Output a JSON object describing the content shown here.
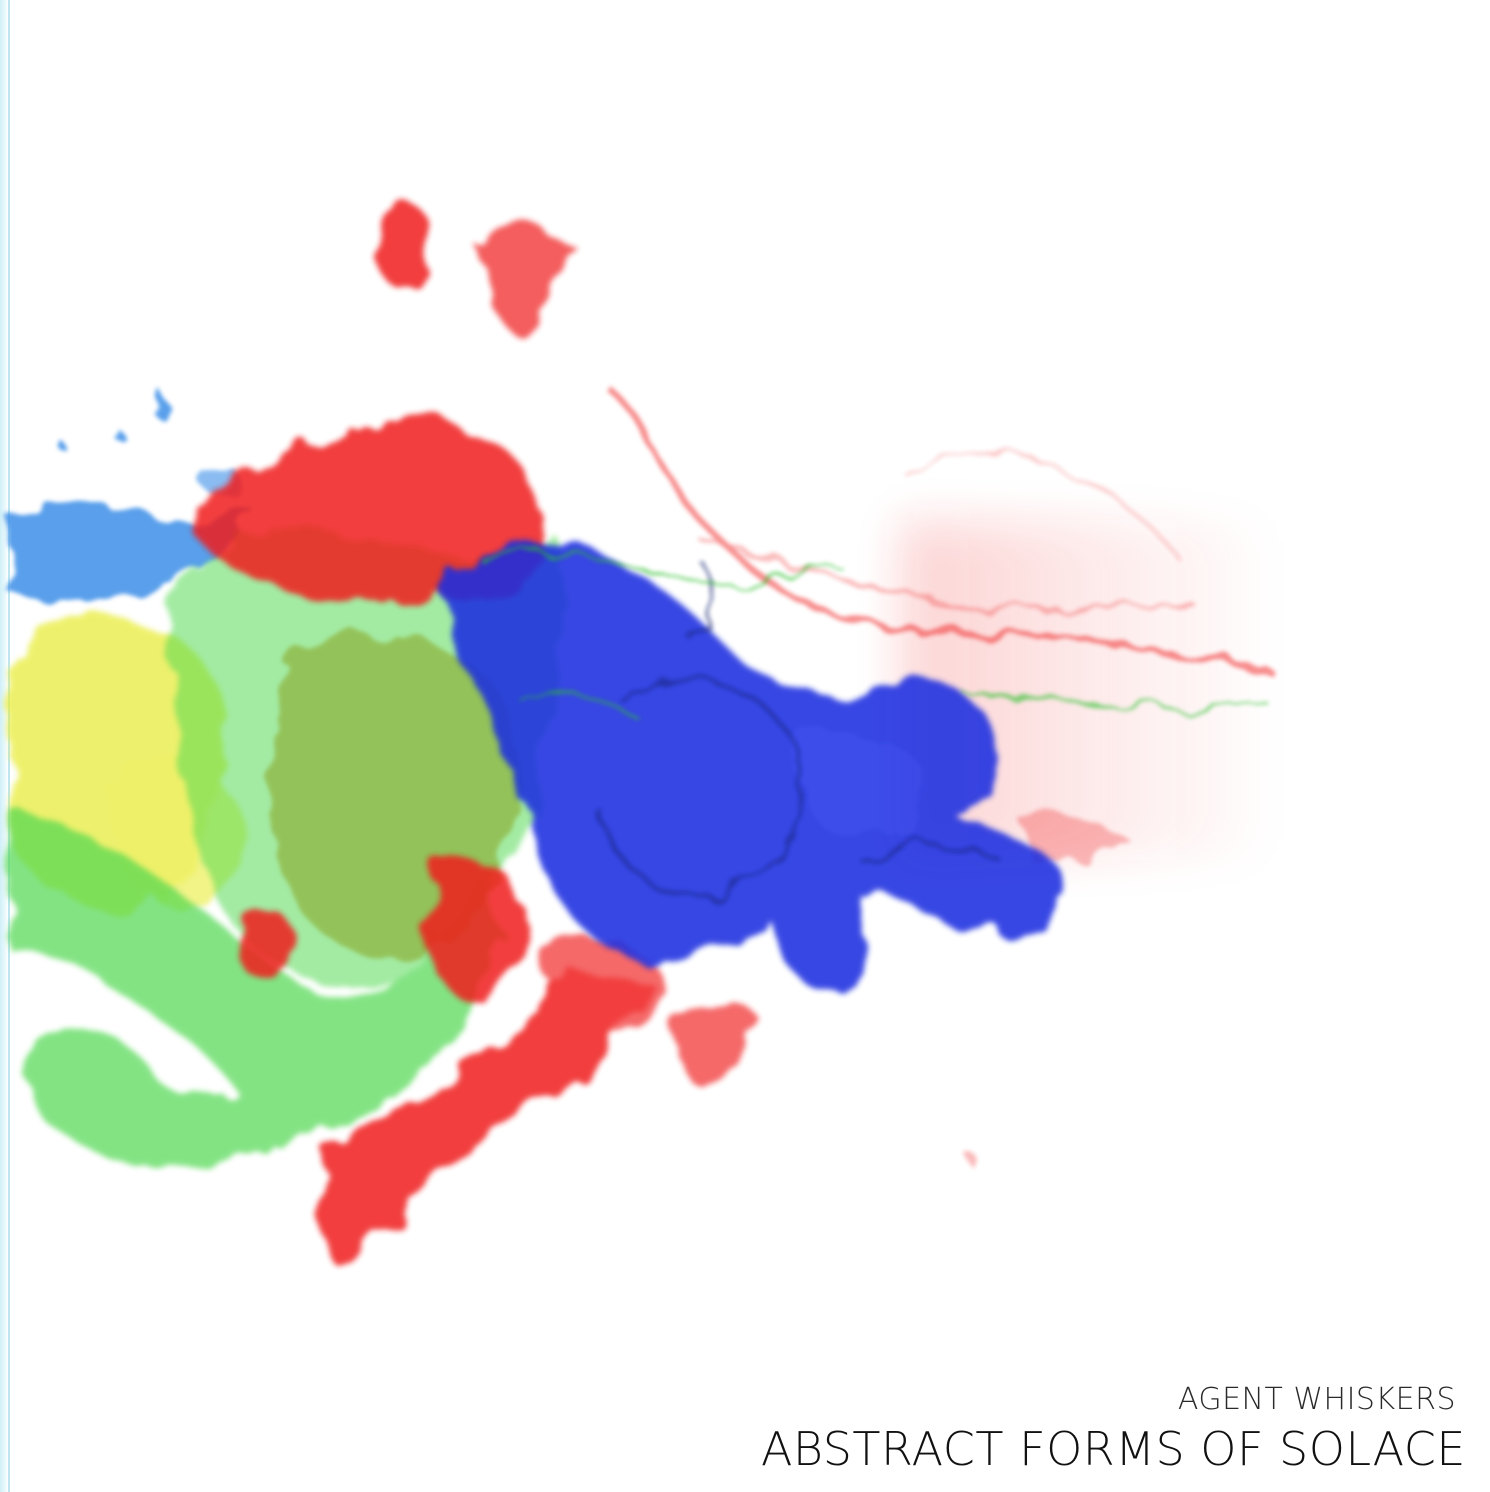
{
  "cover": {
    "artist": "AGENT WHISKERS",
    "title": "ABSTRACT FORMS OF SOLACE"
  },
  "palette": {
    "background": "#ffffff",
    "spine": "#cfeff7",
    "red": "#f01e1e",
    "blue": "#1a2fe0",
    "green": "#4fd84f",
    "yellow": "#e8ec3a",
    "light_blue": "#3d8fe8"
  }
}
